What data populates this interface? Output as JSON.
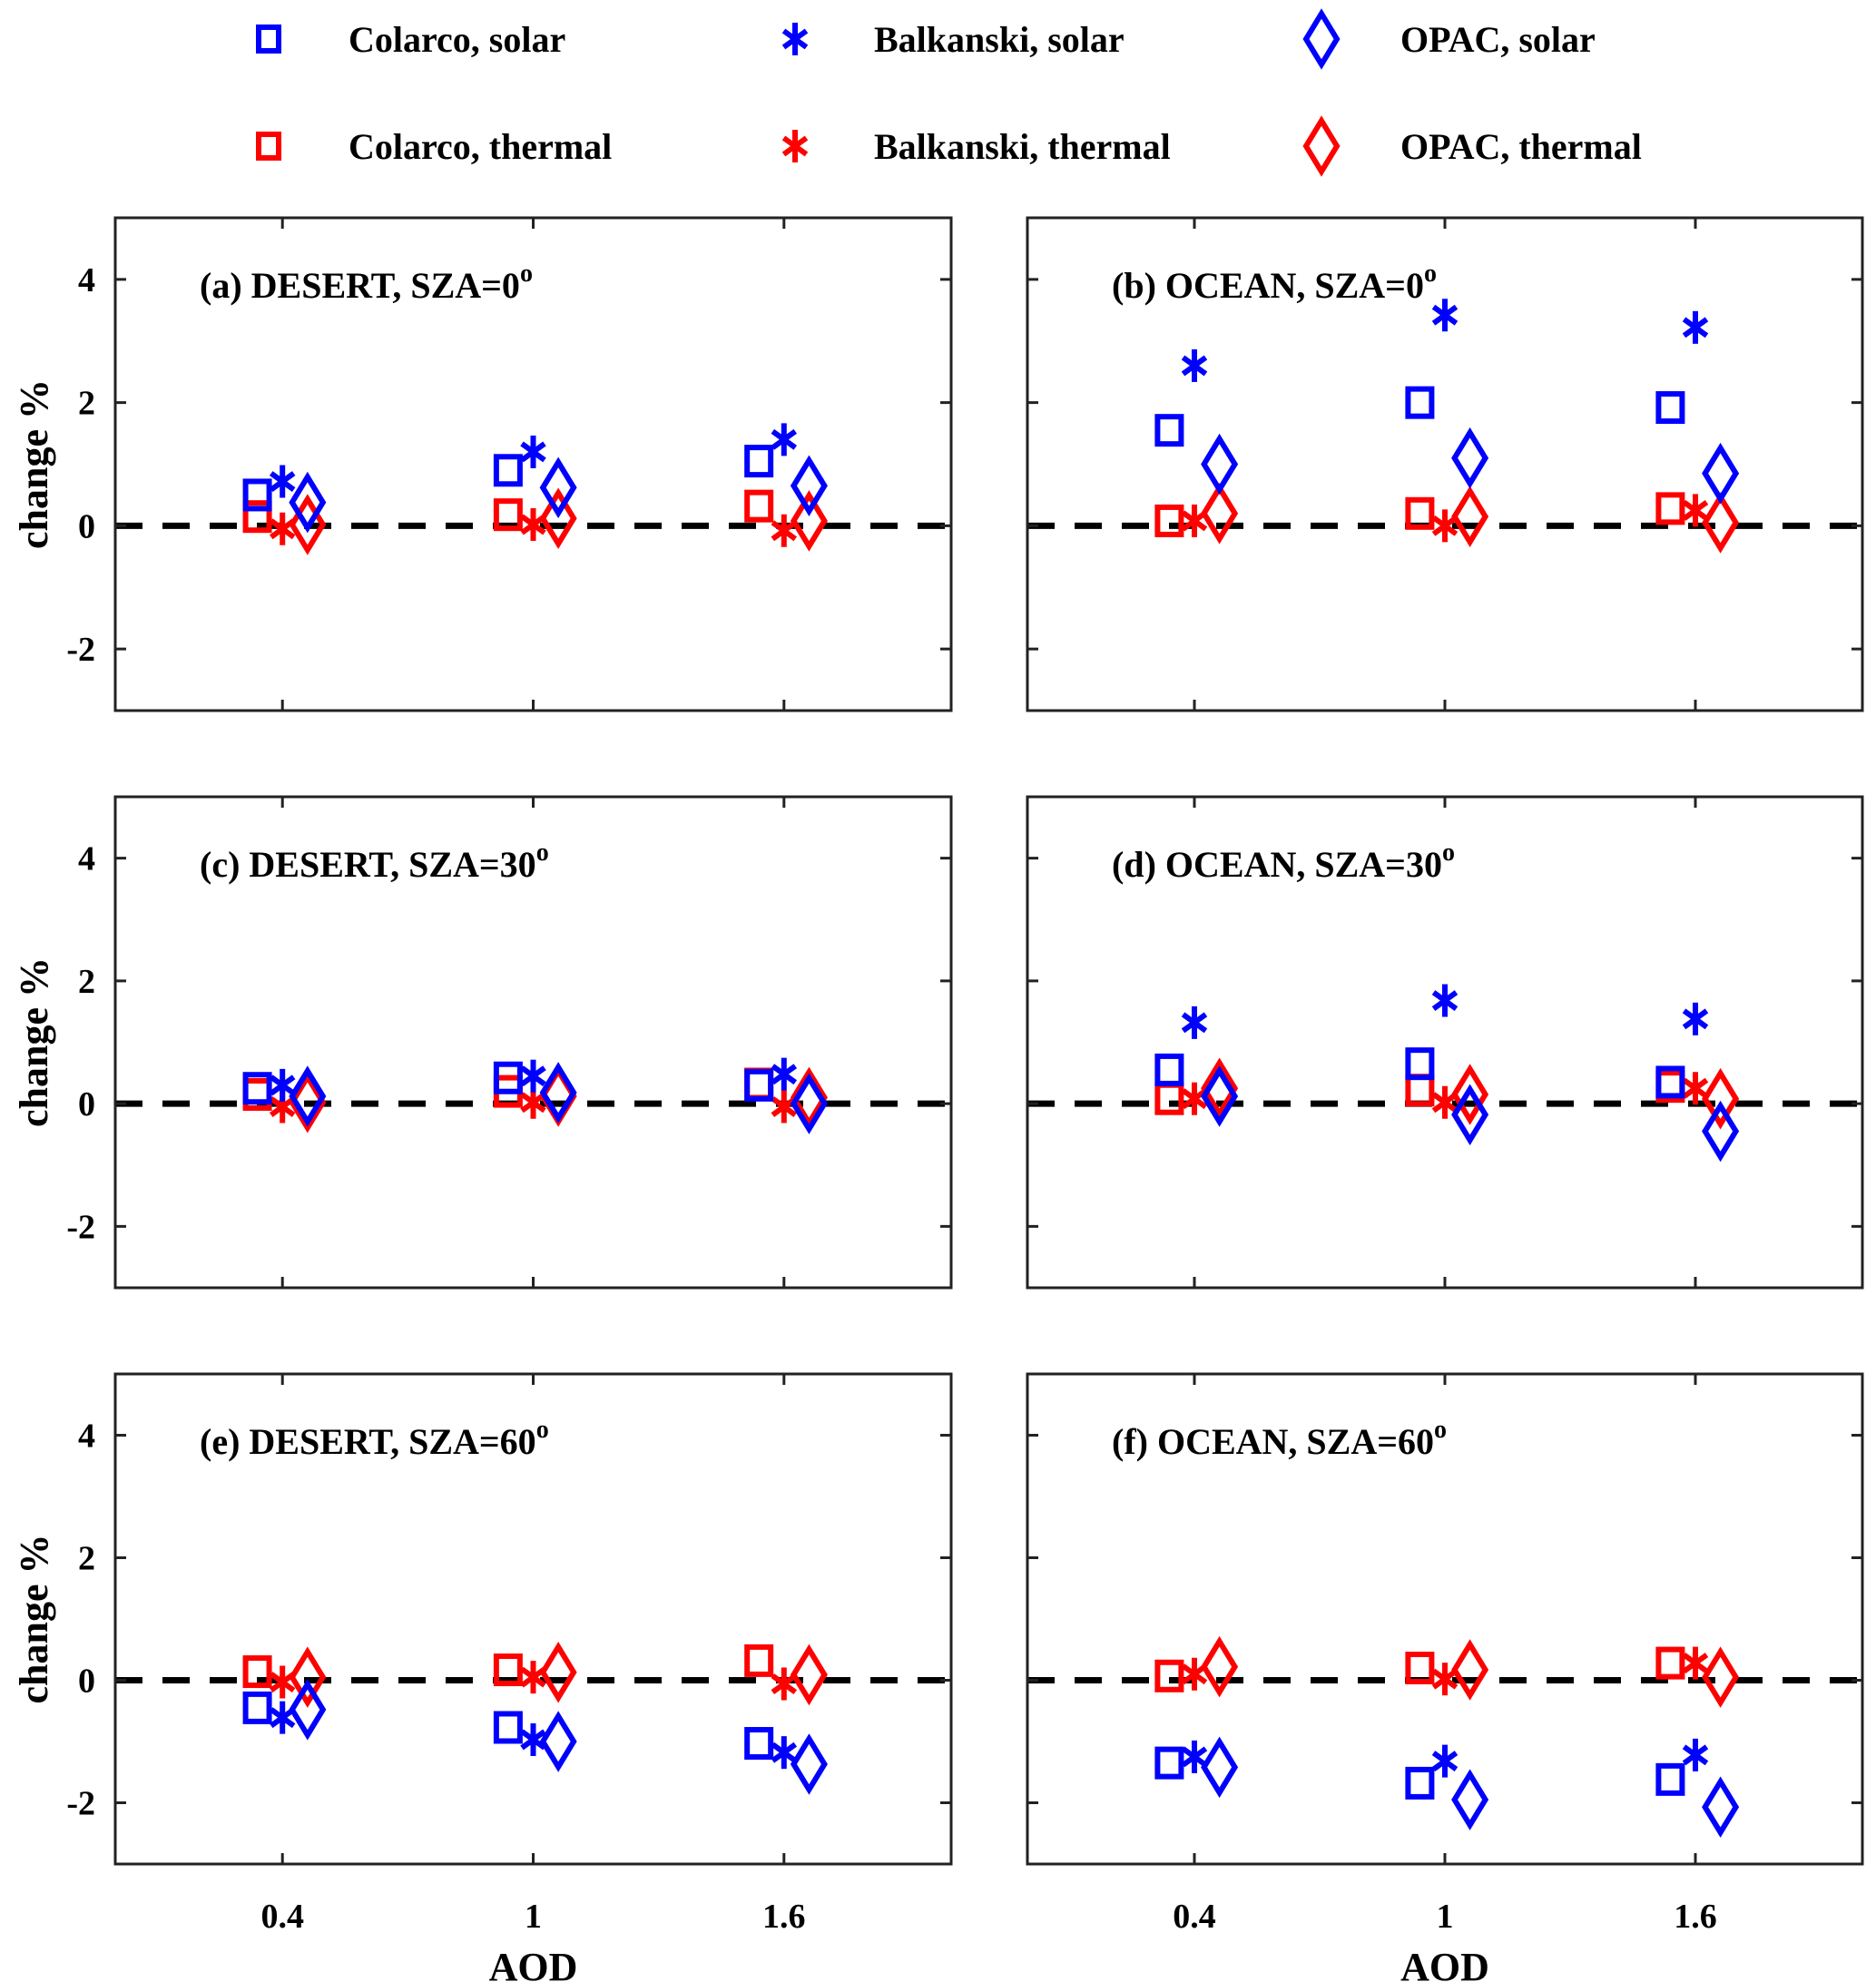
{
  "chart_data": {
    "type": "scatter",
    "legend": {
      "placement": "top",
      "entries": [
        {
          "key": "colarco_solar",
          "label": "Colarco, solar",
          "marker": "square",
          "color": "#0000ff"
        },
        {
          "key": "balkanski_solar",
          "label": "Balkanski, solar",
          "marker": "asterisk",
          "color": "#0000ff"
        },
        {
          "key": "opac_solar",
          "label": "OPAC, solar",
          "marker": "diamond",
          "color": "#0000ff"
        },
        {
          "key": "colarco_thermal",
          "label": "Colarco, thermal",
          "marker": "square",
          "color": "#ff0000"
        },
        {
          "key": "balkanski_thermal",
          "label": "Balkanski, thermal",
          "marker": "asterisk",
          "color": "#ff0000"
        },
        {
          "key": "opac_thermal",
          "label": "OPAC, thermal",
          "marker": "diamond",
          "color": "#ff0000"
        }
      ]
    },
    "x_categories": [
      0.4,
      1,
      1.6
    ],
    "x_tick_labels": [
      "0.4",
      "1",
      "1.6"
    ],
    "xlabel": "AOD",
    "ylabel": "change %",
    "xlim": [
      0,
      2
    ],
    "ylim": [
      -3,
      5
    ],
    "y_ticks": [
      -2,
      0,
      2,
      4
    ],
    "y_tick_labels": [
      "-2",
      "0",
      "2",
      "4"
    ],
    "reference_line": {
      "y": 0,
      "style": "dashed",
      "color": "#000000"
    },
    "grid": false,
    "model_x_offsets": {
      "colarco": -0.06,
      "balkanski": 0,
      "opac": 0.06
    },
    "panels": [
      {
        "id": "a",
        "title": "(a) DESERT, SZA=0",
        "superscript": "o",
        "row": 0,
        "col": 0,
        "series": {
          "colarco_solar": [
            0.5,
            0.9,
            1.05
          ],
          "balkanski_solar": [
            0.72,
            1.2,
            1.4
          ],
          "opac_solar": [
            0.38,
            0.62,
            0.65
          ],
          "colarco_thermal": [
            0.15,
            0.18,
            0.32
          ],
          "balkanski_thermal": [
            -0.05,
            0.02,
            -0.08
          ],
          "opac_thermal": [
            0.02,
            0.12,
            0.08
          ]
        }
      },
      {
        "id": "b",
        "title": "(b) OCEAN, SZA=0",
        "superscript": "o",
        "row": 0,
        "col": 1,
        "series": {
          "colarco_solar": [
            1.55,
            2.0,
            1.92
          ],
          "balkanski_solar": [
            2.6,
            3.42,
            3.22
          ],
          "opac_solar": [
            1.0,
            1.1,
            0.85
          ],
          "colarco_thermal": [
            0.08,
            0.2,
            0.28
          ],
          "balkanski_thermal": [
            0.08,
            0.0,
            0.25
          ],
          "opac_thermal": [
            0.2,
            0.15,
            0.05
          ]
        }
      },
      {
        "id": "c",
        "title": "(c) DESERT, SZA=30",
        "superscript": "o",
        "row": 1,
        "col": 0,
        "series": {
          "colarco_solar": [
            0.25,
            0.42,
            0.3
          ],
          "balkanski_solar": [
            0.3,
            0.45,
            0.48
          ],
          "opac_solar": [
            0.12,
            0.18,
            0.0
          ],
          "colarco_thermal": [
            0.15,
            0.2,
            0.32
          ],
          "balkanski_thermal": [
            -0.05,
            0.02,
            -0.05
          ],
          "opac_thermal": [
            0.02,
            0.12,
            0.1
          ]
        }
      },
      {
        "id": "d",
        "title": "(d) OCEAN, SZA=30",
        "superscript": "o",
        "row": 1,
        "col": 1,
        "series": {
          "colarco_solar": [
            0.55,
            0.65,
            0.35
          ],
          "balkanski_solar": [
            1.32,
            1.68,
            1.38
          ],
          "opac_solar": [
            0.12,
            -0.18,
            -0.45
          ],
          "colarco_thermal": [
            0.08,
            0.22,
            0.28
          ],
          "balkanski_thermal": [
            0.08,
            0.02,
            0.25
          ],
          "opac_thermal": [
            0.25,
            0.15,
            0.08
          ]
        }
      },
      {
        "id": "e",
        "title": "(e) DESERT, SZA=60",
        "superscript": "o",
        "row": 2,
        "col": 0,
        "series": {
          "colarco_solar": [
            -0.45,
            -0.77,
            -1.03
          ],
          "balkanski_solar": [
            -0.61,
            -0.97,
            -1.18
          ],
          "opac_solar": [
            -0.48,
            -1.0,
            -1.37
          ],
          "colarco_thermal": [
            0.14,
            0.17,
            0.32
          ],
          "balkanski_thermal": [
            -0.03,
            0.05,
            -0.06
          ],
          "opac_thermal": [
            0.05,
            0.13,
            0.09
          ]
        }
      },
      {
        "id": "f",
        "title": "(f) OCEAN, SZA=60",
        "superscript": "o",
        "row": 2,
        "col": 1,
        "series": {
          "colarco_solar": [
            -1.35,
            -1.68,
            -1.62
          ],
          "balkanski_solar": [
            -1.25,
            -1.32,
            -1.22
          ],
          "opac_solar": [
            -1.42,
            -1.95,
            -2.07
          ],
          "colarco_thermal": [
            0.07,
            0.2,
            0.28
          ],
          "balkanski_thermal": [
            0.1,
            0.02,
            0.28
          ],
          "opac_thermal": [
            0.22,
            0.17,
            0.05
          ]
        }
      }
    ]
  }
}
